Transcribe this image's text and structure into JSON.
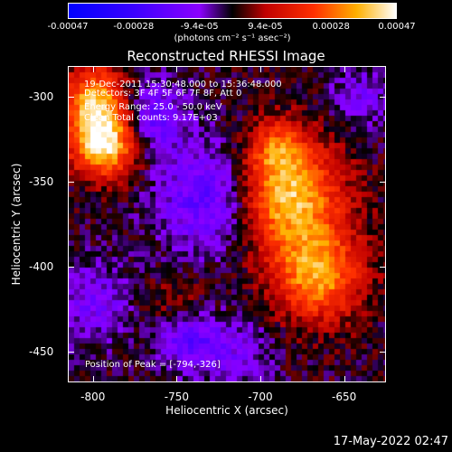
{
  "chart_data": {
    "type": "heatmap",
    "title": "Reconstructed RHESSI Image",
    "xlabel": "Heliocentric X (arcsec)",
    "ylabel": "Heliocentric Y (arcsec)",
    "xlim": [
      -815,
      -625
    ],
    "ylim": [
      -468,
      -282
    ],
    "x_ticks": [
      "-800",
      "-750",
      "-700",
      "-650"
    ],
    "y_ticks": [
      "-300",
      "-350",
      "-400",
      "-450"
    ],
    "colorbar": {
      "range": [
        -0.00047,
        0.00047
      ],
      "tick_labels": [
        "-0.00047",
        "-0.00028",
        "-9.4e-05",
        "9.4e-05",
        "0.00028",
        "0.00047"
      ],
      "units": "(photons cm⁻² s⁻¹ asec⁻²)"
    },
    "info_lines": [
      "19-Dec-2011 15:30:48.000 to 15:36:48.000",
      "Detectors: 3F 4F 5F 6F 7F 8F, Att 0",
      "Energy Range: 25.0 - 50.0 keV",
      "Clean    Total counts: 9.17E+03"
    ],
    "peak_text": "Position of Peak = [-794,-326]",
    "sources": [
      {
        "x": -794,
        "y": -326,
        "amp": 0.00047,
        "sigma": 14
      },
      {
        "x": -800,
        "y": -300,
        "amp": 0.00033,
        "sigma": 13
      },
      {
        "x": -684,
        "y": -360,
        "amp": 0.0004,
        "sigma": 22
      },
      {
        "x": -666,
        "y": -405,
        "amp": 0.00034,
        "sigma": 18
      },
      {
        "x": -690,
        "y": -330,
        "amp": 0.00022,
        "sigma": 12
      },
      {
        "x": -750,
        "y": -425,
        "amp": 0.00012,
        "sigma": 14
      },
      {
        "x": -730,
        "y": -360,
        "amp": -0.00022,
        "sigma": 22
      },
      {
        "x": -765,
        "y": -312,
        "amp": -0.0002,
        "sigma": 14
      },
      {
        "x": -745,
        "y": -440,
        "amp": -0.00024,
        "sigma": 13
      },
      {
        "x": -800,
        "y": -420,
        "amp": -0.00014,
        "sigma": 16
      },
      {
        "x": -715,
        "y": -450,
        "amp": -0.00012,
        "sigma": 14
      },
      {
        "x": -640,
        "y": -300,
        "amp": -0.00012,
        "sigma": 12
      }
    ]
  },
  "timestamp": "17-May-2022 02:47"
}
